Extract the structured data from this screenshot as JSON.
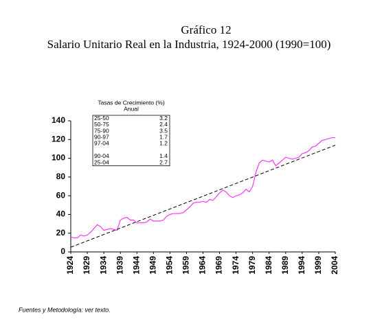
{
  "chart_data": {
    "type": "line",
    "title": "Gráfico 12",
    "subtitle": "Salario Unitario Real en la Industria, 1924-2000 (1990=100)",
    "footnote": "Fuentes y Metodología: ver texto.",
    "x": [
      1924,
      1925,
      1926,
      1927,
      1928,
      1929,
      1930,
      1931,
      1932,
      1933,
      1934,
      1935,
      1936,
      1937,
      1938,
      1939,
      1940,
      1941,
      1942,
      1943,
      1944,
      1945,
      1946,
      1947,
      1948,
      1949,
      1950,
      1951,
      1952,
      1953,
      1954,
      1955,
      1956,
      1957,
      1958,
      1959,
      1960,
      1961,
      1962,
      1963,
      1964,
      1965,
      1966,
      1967,
      1968,
      1969,
      1970,
      1971,
      1972,
      1973,
      1974,
      1975,
      1976,
      1977,
      1978,
      1979,
      1980,
      1981,
      1982,
      1983,
      1984,
      1985,
      1986,
      1987,
      1988,
      1989,
      1990,
      1991,
      1992,
      1993,
      1994,
      1995,
      1996,
      1997,
      1998,
      1999,
      2000,
      2001,
      2002,
      2003,
      2004
    ],
    "series": [
      {
        "color": "#ff33ff",
        "values": [
          16,
          15,
          15,
          18,
          17,
          18,
          21,
          25,
          29,
          27,
          23,
          24,
          25,
          24,
          23,
          34,
          36,
          37,
          34,
          34,
          31,
          31,
          31,
          32,
          35,
          33,
          33,
          33,
          34,
          38,
          40,
          41,
          41,
          41,
          42,
          45,
          48,
          52,
          53,
          53,
          54,
          53,
          56,
          55,
          59,
          63,
          66,
          64,
          60,
          58,
          60,
          61,
          63,
          67,
          64,
          70,
          85,
          95,
          98,
          97,
          96,
          98,
          92,
          95,
          98,
          101,
          100,
          99,
          100,
          101,
          105,
          106,
          108,
          112,
          113,
          116,
          119,
          120,
          121,
          122,
          122
        ]
      },
      {
        "color": "#000000",
        "dashed": true,
        "x": [
          1924,
          2004
        ],
        "values": [
          5,
          114
        ]
      }
    ],
    "xlim": [
      1924,
      2004
    ],
    "xticks": [
      1924,
      1929,
      1934,
      1939,
      1944,
      1949,
      1954,
      1959,
      1964,
      1969,
      1974,
      1979,
      1984,
      1989,
      1994,
      1999,
      2004
    ],
    "ylim": [
      0,
      140
    ],
    "yticks": [
      0,
      20,
      40,
      60,
      80,
      100,
      120,
      140
    ],
    "annotation_table": {
      "title": [
        "Tasas de Crecimiento (%)",
        "Anual"
      ],
      "groups": [
        [
          [
            "25-50",
            "3.2"
          ],
          [
            "50-75",
            "2.4"
          ],
          [
            "75-90",
            "3.5"
          ],
          [
            "90-97",
            "1.7"
          ],
          [
            "97-04",
            "1.2"
          ]
        ],
        [
          [
            "90-04",
            "1.4"
          ],
          [
            "25-04",
            "2.7"
          ]
        ]
      ]
    }
  }
}
